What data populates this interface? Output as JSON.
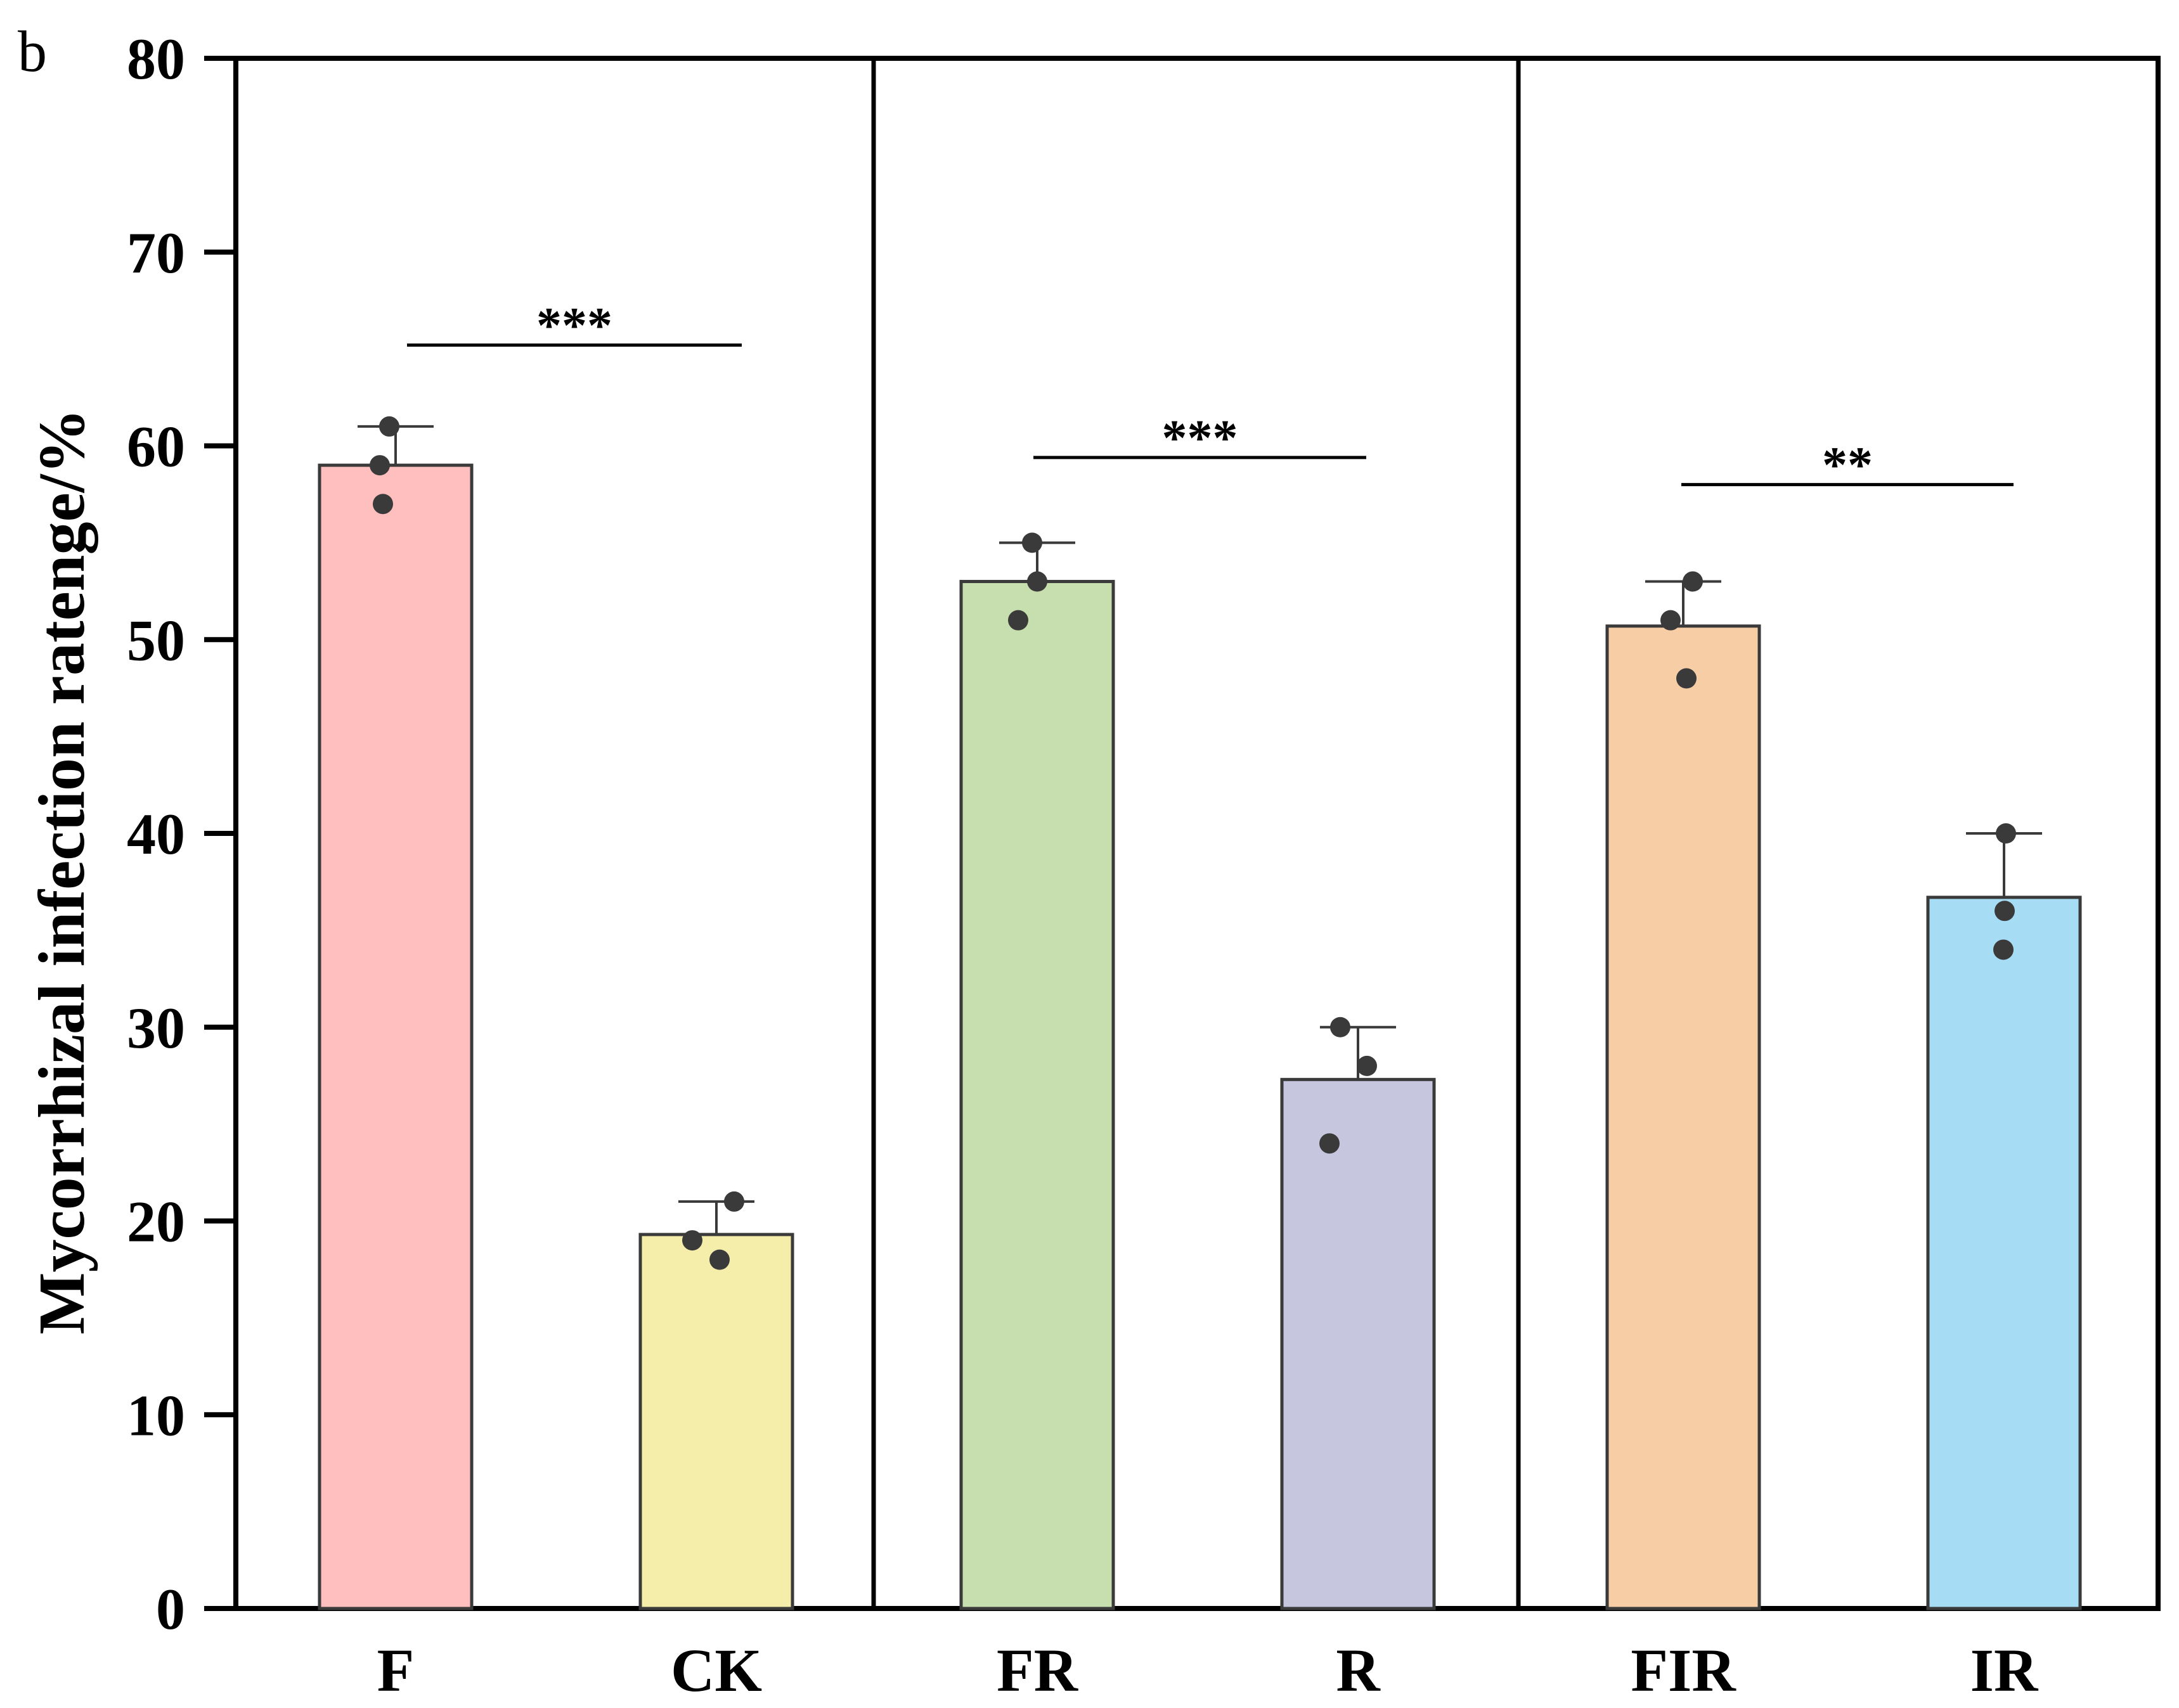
{
  "panel_label": "b",
  "chart_data": {
    "type": "bar",
    "ylabel": "Mycorrhizal infection ratenge/%",
    "xlabel": "",
    "ylim": [
      0,
      80
    ],
    "yticks": [
      0,
      10,
      20,
      30,
      40,
      50,
      60,
      70,
      80
    ],
    "categories": [
      "F",
      "CK",
      "FR",
      "R",
      "FIR",
      "IR"
    ],
    "groups": [
      [
        "F",
        "CK"
      ],
      [
        "FR",
        "R"
      ],
      [
        "FIR",
        "IR"
      ]
    ],
    "values": [
      59,
      19.3,
      53,
      27.3,
      50.7,
      36.7
    ],
    "error_upper": [
      61,
      21,
      55,
      30,
      53,
      40
    ],
    "points": [
      [
        61,
        59,
        57
      ],
      [
        21,
        19,
        18
      ],
      [
        55,
        53,
        51
      ],
      [
        30,
        28,
        24
      ],
      [
        53,
        51,
        48
      ],
      [
        40,
        36,
        34
      ]
    ],
    "colors": [
      "#FFBFBF",
      "#F5EDAA",
      "#C7DFAE",
      "#C6C6DE",
      "#F6CDA5",
      "#A6DDF4"
    ],
    "significance": [
      {
        "between": [
          "F",
          "CK"
        ],
        "label": "***",
        "y": 65.2
      },
      {
        "between": [
          "FR",
          "R"
        ],
        "label": "***",
        "y": 59.4
      },
      {
        "between": [
          "FIR",
          "IR"
        ],
        "label": "**",
        "y": 58
      }
    ],
    "grid": false,
    "legend": "none"
  }
}
